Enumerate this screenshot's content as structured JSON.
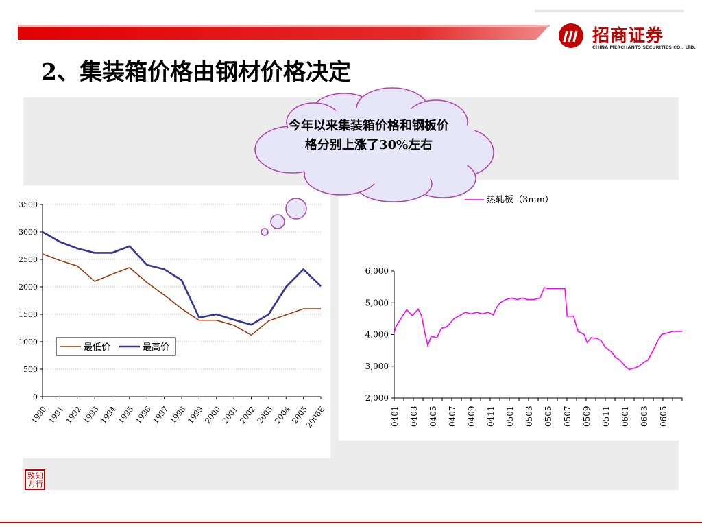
{
  "slide": {
    "title": "2、集装箱价格由钢材价格决定",
    "callout": "今年以来集装箱价格和钢板价格分别上涨了30%左右"
  },
  "logo": {
    "name_cn": "招商证券",
    "name_en": "CHINA MERCHANTS SECURITIES CO., LTD.",
    "color": "#c40000"
  },
  "stamp": {
    "chars": [
      "致",
      "知",
      "力",
      "行"
    ],
    "color": "#c00000"
  },
  "chart_data": [
    {
      "type": "line",
      "categories": [
        "1990",
        "1991",
        "1992",
        "1993",
        "1994",
        "1995",
        "1996",
        "1997",
        "1998",
        "1999",
        "2000",
        "2001",
        "2002",
        "2003",
        "2004",
        "2005",
        "2006E"
      ],
      "series": [
        {
          "name": "最低价",
          "color": "#993300",
          "values": [
            2600,
            2480,
            2380,
            2100,
            2230,
            2350,
            2080,
            1850,
            1600,
            1390,
            1390,
            1300,
            1120,
            1380,
            1490,
            1600,
            1600
          ]
        },
        {
          "name": "最高价",
          "color": "#333399",
          "values": [
            3000,
            2820,
            2700,
            2620,
            2620,
            2740,
            2400,
            2320,
            2120,
            1440,
            1500,
            1400,
            1310,
            1500,
            2000,
            2320,
            2010
          ]
        }
      ],
      "yticks": [
        "0",
        "500",
        "1000",
        "1500",
        "2000",
        "2500",
        "3000",
        "3500"
      ],
      "ylim": [
        0,
        3500
      ],
      "grid": true,
      "legend": "bottom-left"
    },
    {
      "type": "line",
      "x_labels": [
        "0401",
        "0403",
        "0405",
        "0407",
        "0409",
        "0411",
        "0501",
        "0503",
        "0505",
        "0507",
        "0509",
        "0511",
        "0601",
        "0603",
        "0605"
      ],
      "series": [
        {
          "name": "热轧板（3mm）",
          "color": "#ff00ff",
          "points": [
            [
              0,
              4050
            ],
            [
              0.3,
              4250
            ],
            [
              1.0,
              4450
            ],
            [
              1.5,
              4600
            ],
            [
              2.2,
              4780
            ],
            [
              2.6,
              4700
            ],
            [
              3.2,
              4600
            ],
            [
              4.2,
              4800
            ],
            [
              4.8,
              4600
            ],
            [
              5.4,
              4050
            ],
            [
              5.9,
              3650
            ],
            [
              6.5,
              3950
            ],
            [
              7.5,
              3900
            ],
            [
              8.3,
              4200
            ],
            [
              9.3,
              4250
            ],
            [
              10.5,
              4500
            ],
            [
              11.5,
              4600
            ],
            [
              12.5,
              4700
            ],
            [
              13.5,
              4650
            ],
            [
              14.5,
              4700
            ],
            [
              15.5,
              4650
            ],
            [
              16.5,
              4700
            ],
            [
              17.4,
              4620
            ],
            [
              18.0,
              4850
            ],
            [
              18.6,
              5000
            ],
            [
              19.6,
              5100
            ],
            [
              20.6,
              5150
            ],
            [
              21.6,
              5100
            ],
            [
              22.5,
              5150
            ],
            [
              23.5,
              5100
            ],
            [
              24.5,
              5100
            ],
            [
              25.6,
              5150
            ],
            [
              26.4,
              5480
            ],
            [
              27.0,
              5450
            ],
            [
              28.0,
              5450
            ],
            [
              29.0,
              5450
            ],
            [
              30.0,
              5450
            ],
            [
              30.4,
              4580
            ],
            [
              31.5,
              4580
            ],
            [
              32.3,
              4100
            ],
            [
              33.4,
              4000
            ],
            [
              33.9,
              3750
            ],
            [
              34.6,
              3900
            ],
            [
              35.6,
              3880
            ],
            [
              36.4,
              3800
            ],
            [
              37.1,
              3600
            ],
            [
              38.2,
              3450
            ],
            [
              38.8,
              3300
            ],
            [
              39.6,
              3200
            ],
            [
              40.6,
              3000
            ],
            [
              41.3,
              2900
            ],
            [
              42.3,
              2950
            ],
            [
              43.0,
              3000
            ],
            [
              43.7,
              3100
            ],
            [
              44.6,
              3200
            ],
            [
              45.5,
              3500
            ],
            [
              46.3,
              3800
            ],
            [
              47.0,
              4000
            ],
            [
              48.0,
              4050
            ],
            [
              49.0,
              4100
            ],
            [
              50.0,
              4100
            ],
            [
              50.6,
              4100
            ]
          ]
        }
      ],
      "yticks": [
        "2,000",
        "3,000",
        "4,000",
        "5,000",
        "6,000"
      ],
      "ylim": [
        2000,
        6000
      ],
      "legend": "top-right"
    }
  ]
}
